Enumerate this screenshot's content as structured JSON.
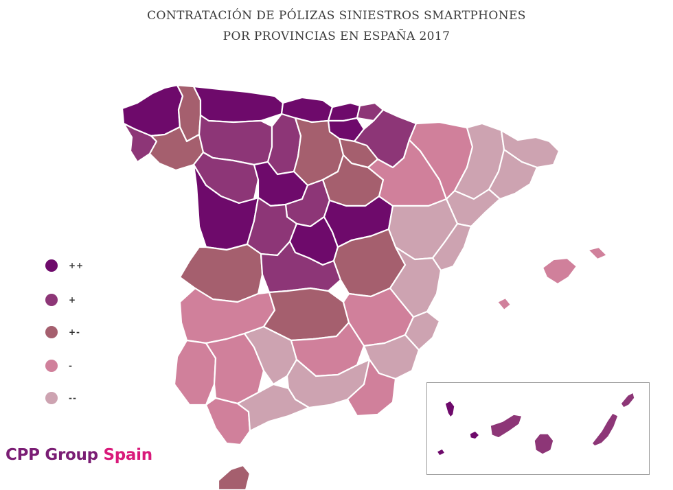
{
  "title": {
    "line1": "CONTRATACIÓN DE PÓLIZAS SINIESTROS SMARTPHONES",
    "line2": "POR PROVINCIAS EN ESPAÑA 2017"
  },
  "legend": [
    {
      "label": "++",
      "color": "#6e0a6b"
    },
    {
      "label": "+",
      "color": "#8d3677"
    },
    {
      "label": "+-",
      "color": "#a55f6e"
    },
    {
      "label": "-",
      "color": "#d0809b"
    },
    {
      "label": "--",
      "color": "#cda3b1"
    }
  ],
  "brand": {
    "part1": "CPP Group ",
    "part2": "Spain"
  },
  "colors": {
    "very_high": "#6e0a6b",
    "high": "#8d3677",
    "medium": "#a55f6e",
    "low": "#d0809b",
    "very_low": "#cda3b1",
    "border": "#ffffff"
  }
}
